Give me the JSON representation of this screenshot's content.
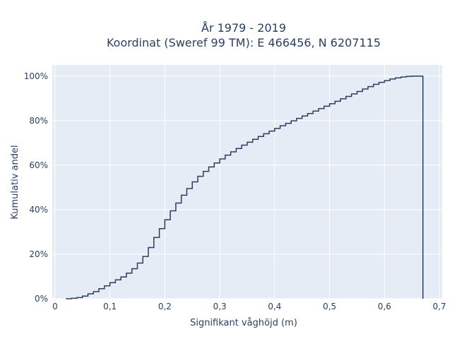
{
  "chart_data": {
    "type": "line",
    "line_shape": "step",
    "title": [
      "År 1979 - 2019",
      "Koordinat (Sweref 99 TM): E 466456, N 6207115"
    ],
    "xlabel": "Signifikant våghöjd (m)",
    "ylabel": "Kumulativ andel",
    "xlim": [
      -0.005,
      0.705
    ],
    "ylim": [
      0,
      1.05
    ],
    "x_ticks": [
      0,
      0.1,
      0.2,
      0.3,
      0.4,
      0.5,
      0.6,
      0.7
    ],
    "x_tick_labels": [
      "0",
      "0,1",
      "0,2",
      "0,3",
      "0,4",
      "0,5",
      "0,6",
      "0,7"
    ],
    "y_ticks": [
      0,
      0.2,
      0.4,
      0.6,
      0.8,
      1.0
    ],
    "y_tick_labels": [
      "0%",
      "20%",
      "40%",
      "60%",
      "80%",
      "100%"
    ],
    "grid": true,
    "colors": {
      "line": "#2a3f5f",
      "plot_bg": "#e5ecf6",
      "grid": "#ffffff",
      "text": "#2a3f5f"
    },
    "x": [
      0.02,
      0.03,
      0.04,
      0.05,
      0.06,
      0.07,
      0.08,
      0.09,
      0.1,
      0.11,
      0.12,
      0.13,
      0.14,
      0.15,
      0.16,
      0.17,
      0.18,
      0.19,
      0.2,
      0.21,
      0.22,
      0.23,
      0.24,
      0.25,
      0.26,
      0.27,
      0.28,
      0.29,
      0.3,
      0.31,
      0.32,
      0.33,
      0.34,
      0.35,
      0.36,
      0.37,
      0.38,
      0.39,
      0.4,
      0.41,
      0.42,
      0.43,
      0.44,
      0.45,
      0.46,
      0.47,
      0.48,
      0.49,
      0.5,
      0.51,
      0.52,
      0.53,
      0.54,
      0.55,
      0.56,
      0.57,
      0.58,
      0.59,
      0.6,
      0.61,
      0.62,
      0.63,
      0.64,
      0.65,
      0.66,
      0.67
    ],
    "y": [
      0.0,
      0.002,
      0.005,
      0.012,
      0.022,
      0.032,
      0.045,
      0.058,
      0.072,
      0.085,
      0.098,
      0.115,
      0.135,
      0.16,
      0.19,
      0.23,
      0.275,
      0.315,
      0.355,
      0.395,
      0.43,
      0.465,
      0.495,
      0.525,
      0.55,
      0.572,
      0.592,
      0.61,
      0.628,
      0.645,
      0.66,
      0.675,
      0.69,
      0.703,
      0.716,
      0.729,
      0.741,
      0.753,
      0.765,
      0.777,
      0.788,
      0.799,
      0.81,
      0.821,
      0.832,
      0.843,
      0.854,
      0.865,
      0.876,
      0.887,
      0.898,
      0.909,
      0.92,
      0.931,
      0.942,
      0.953,
      0.963,
      0.972,
      0.98,
      0.987,
      0.992,
      0.996,
      0.999,
      1.0,
      1.0,
      0.0
    ]
  }
}
